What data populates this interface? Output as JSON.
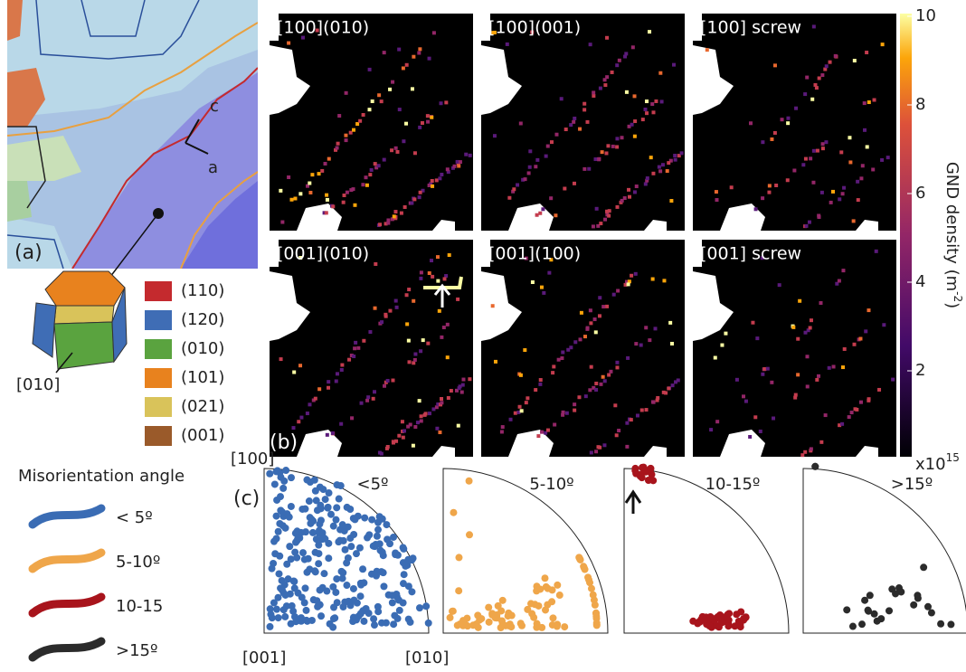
{
  "panel_a": {
    "label": "(a)",
    "axis_c": "c",
    "axis_a": "a",
    "crystal_direction": "[010]",
    "legend": [
      {
        "label": "(110)",
        "color": "#c42a2e"
      },
      {
        "label": "(120)",
        "color": "#3f6db5"
      },
      {
        "label": "(010)",
        "color": "#5aa33f"
      },
      {
        "label": "(101)",
        "color": "#e8821e"
      },
      {
        "label": "(021)",
        "color": "#d9c35a"
      },
      {
        "label": "(001)",
        "color": "#9a5a2a"
      }
    ]
  },
  "panel_b": {
    "label": "(b)",
    "maps": [
      "[100](010)",
      "[100](001)",
      "[100] screw",
      "[001](010)",
      "[001](100)",
      "[001] screw"
    ],
    "colorbar": {
      "ticks": [
        "10",
        "8",
        "6",
        "4",
        "2"
      ],
      "multiplier": "x10",
      "exponent": "15",
      "title": "GND density (m",
      "title_exponent": "-2",
      "title_end": ")"
    }
  },
  "misorientation_legend": {
    "title": "Misorientation angle",
    "items": [
      {
        "label": "< 5º",
        "color": "#3a6cb4"
      },
      {
        "label": "5-10º",
        "color": "#efa64a"
      },
      {
        "label": "10-15",
        "color": "#a8141c"
      },
      {
        "label": ">15º",
        "color": "#2b2b2b"
      }
    ]
  },
  "panel_c": {
    "label": "(c)",
    "top": "[100]",
    "bottom_left": "[001]",
    "bottom_right": "[010]",
    "plots": [
      {
        "title": "<5º",
        "color": "#3a6cb4"
      },
      {
        "title": "5-10º",
        "color": "#efa64a"
      },
      {
        "title": "10-15º",
        "color": "#a8141c"
      },
      {
        "title": ">15º",
        "color": "#2b2b2b"
      }
    ]
  }
}
